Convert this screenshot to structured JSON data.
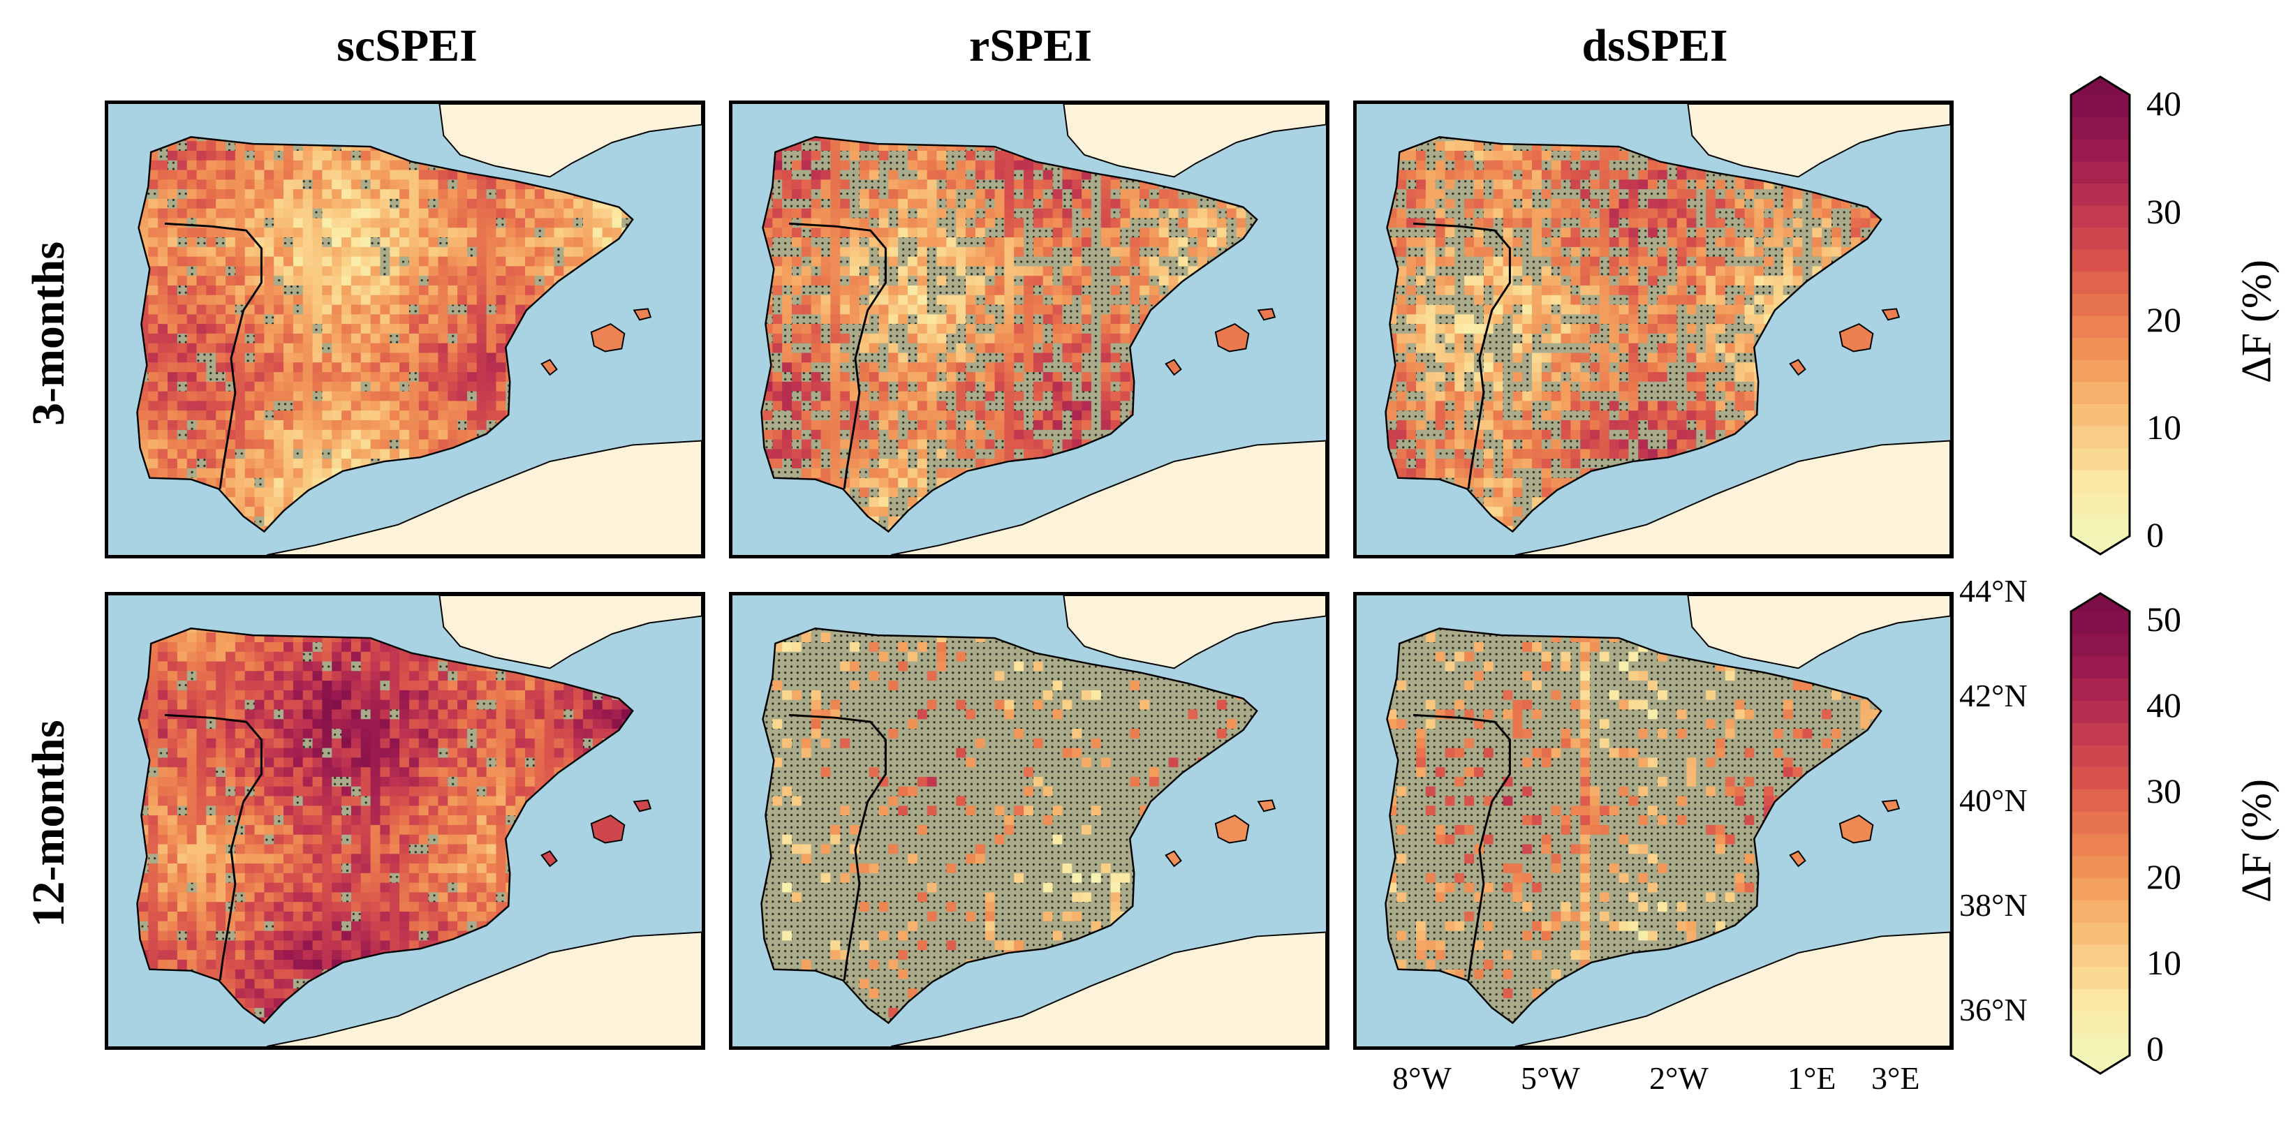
{
  "columns": [
    "scSPEI",
    "rSPEI",
    "dsSPEI"
  ],
  "rows": [
    "3-months",
    "12-months"
  ],
  "latitude_labels": [
    "44°N",
    "42°N",
    "40°N",
    "38°N",
    "36°N"
  ],
  "longitude_labels": [
    "8°W",
    "5°W",
    "2°W",
    "1°E",
    "3°E"
  ],
  "colorbars": [
    {
      "label": "ΔF  (%)",
      "min": 0,
      "max": 40,
      "ticks": [
        "40",
        "30",
        "20",
        "10",
        "0"
      ]
    },
    {
      "label": "ΔF  (%)",
      "min": 0,
      "max": 50,
      "ticks": [
        "50",
        "40",
        "30",
        "20",
        "10",
        "0"
      ]
    }
  ],
  "colors": {
    "sea": "#a9d3e2",
    "land_outside": "#fdf3da",
    "hatch_area": "#a9ab8a",
    "colormap": [
      "#f4f6b8",
      "#fbe7a1",
      "#f9c77f",
      "#f4a05e",
      "#ea7a4e",
      "#d9534c",
      "#bd3350",
      "#9a1a4f",
      "#7d0e47"
    ]
  },
  "panels": [
    {
      "column": "scSPEI",
      "row": "3-months",
      "mean_intensity": 0.42,
      "hatched_fraction": 0.08
    },
    {
      "column": "rSPEI",
      "row": "3-months",
      "mean_intensity": 0.45,
      "hatched_fraction": 0.35
    },
    {
      "column": "dsSPEI",
      "row": "3-months",
      "mean_intensity": 0.43,
      "hatched_fraction": 0.35
    },
    {
      "column": "scSPEI",
      "row": "12-months",
      "mean_intensity": 0.62,
      "hatched_fraction": 0.06
    },
    {
      "column": "rSPEI",
      "row": "12-months",
      "mean_intensity": 0.38,
      "hatched_fraction": 0.85
    },
    {
      "column": "dsSPEI",
      "row": "12-months",
      "mean_intensity": 0.4,
      "hatched_fraction": 0.78
    }
  ]
}
